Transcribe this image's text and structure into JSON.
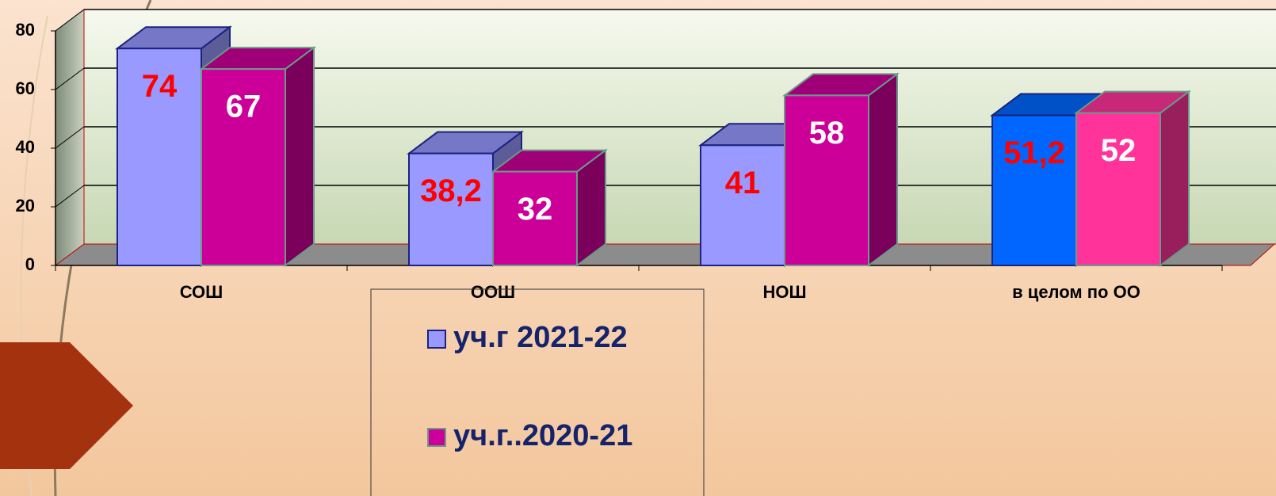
{
  "chart_data": {
    "type": "bar3d",
    "categories": [
      "СОШ",
      "ООШ",
      "НОШ",
      "в целом по ОО"
    ],
    "series": [
      {
        "name": "уч.г 2021-22",
        "color": "#9999ff",
        "colors": [
          "#9999ff",
          "#9999ff",
          "#9999ff",
          "#0066ff"
        ],
        "label_color": "#ff0000",
        "values": [
          74,
          38.2,
          41,
          51.2
        ],
        "value_labels": [
          "74",
          "38,2",
          "41",
          "51,2"
        ]
      },
      {
        "name": "уч.г..2020-21",
        "color": "#cc0099",
        "colors": [
          "#cc0099",
          "#cc0099",
          "#cc0099",
          "#ff3399"
        ],
        "label_color": "#ffffff",
        "values": [
          67,
          32,
          58,
          52
        ],
        "value_labels": [
          "67",
          "32",
          "58",
          "52"
        ]
      }
    ],
    "ylim": [
      0,
      80
    ],
    "yticks": [
      0,
      20,
      40,
      60,
      80
    ],
    "grid": true
  }
}
